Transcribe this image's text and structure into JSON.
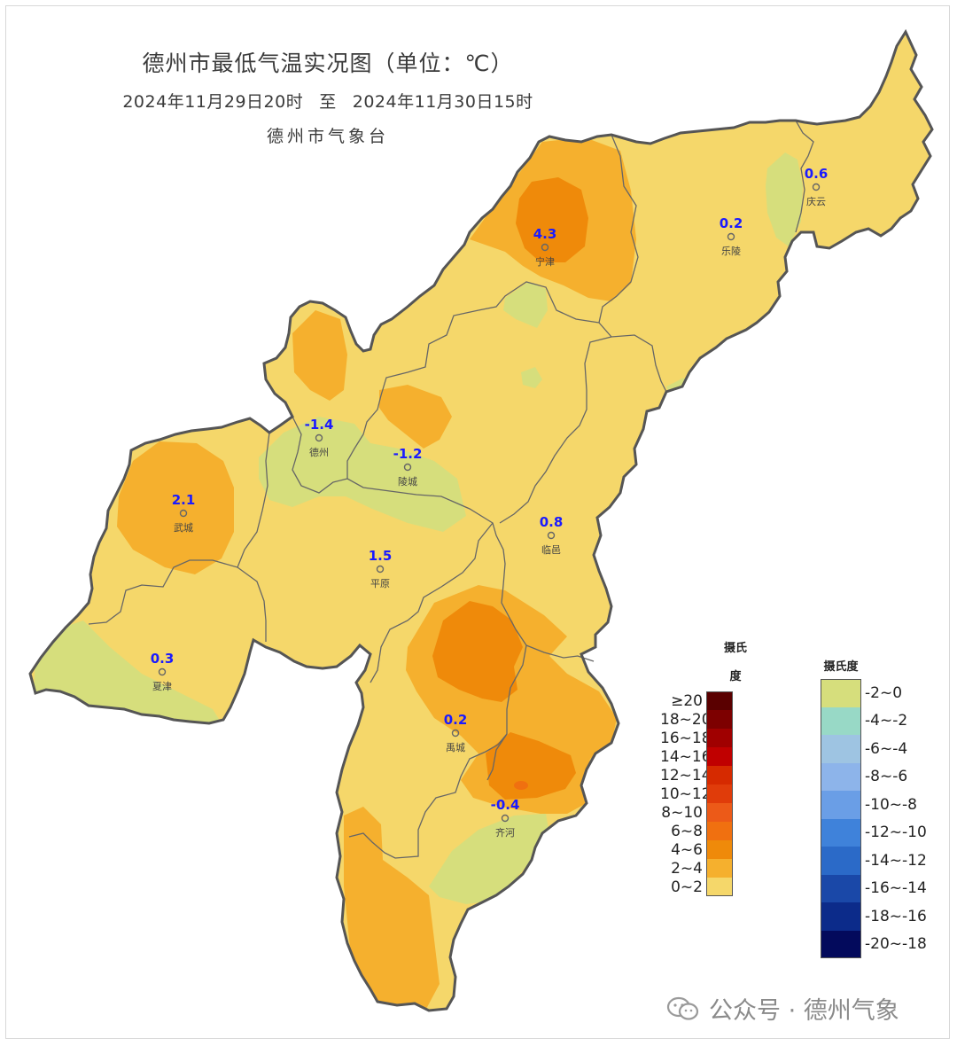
{
  "header": {
    "title": "德州市最低气温实况图（单位：℃）",
    "period_start": "2024年11月29日20时",
    "period_sep": "至",
    "period_end": "2024年11月30日15时",
    "issuer": "德州市气象台"
  },
  "stations": [
    {
      "name": "宁津",
      "value": "4.3"
    },
    {
      "name": "乐陵",
      "value": "0.2"
    },
    {
      "name": "庆云",
      "value": "0.6"
    },
    {
      "name": "德州",
      "value": "-1.4"
    },
    {
      "name": "陵城",
      "value": "-1.2"
    },
    {
      "name": "武城",
      "value": "2.1"
    },
    {
      "name": "平原",
      "value": "1.5"
    },
    {
      "name": "临邑",
      "value": "0.8"
    },
    {
      "name": "夏津",
      "value": "0.3"
    },
    {
      "name": "禹城",
      "value": "0.2"
    },
    {
      "name": "齐河",
      "value": "-0.4"
    }
  ],
  "legend_warm": {
    "title_line1": "摄氏",
    "title_line2": "度",
    "items": [
      {
        "label": "≥20",
        "color": "#5a0000"
      },
      {
        "label": "18~20",
        "color": "#7d0000"
      },
      {
        "label": "16~18",
        "color": "#a00000"
      },
      {
        "label": "14~16",
        "color": "#c00000"
      },
      {
        "label": "12~14",
        "color": "#d62a00"
      },
      {
        "label": "10~12",
        "color": "#e03c0a"
      },
      {
        "label": "8~10",
        "color": "#ec5a18"
      },
      {
        "label": "6~8",
        "color": "#f07010"
      },
      {
        "label": "4~6",
        "color": "#ef8a0a"
      },
      {
        "label": "2~4",
        "color": "#f5b02e"
      },
      {
        "label": "0~2",
        "color": "#f5d76a"
      }
    ]
  },
  "legend_cold": {
    "title": "摄氏度",
    "items": [
      {
        "label": "-2~0",
        "color": "#d6de7c"
      },
      {
        "label": "-4~-2",
        "color": "#98d9c6"
      },
      {
        "label": "-6~-4",
        "color": "#9ec4e2"
      },
      {
        "label": "-8~-6",
        "color": "#8db4ea"
      },
      {
        "label": "-10~-8",
        "color": "#6a9ee6"
      },
      {
        "label": "-12~-10",
        "color": "#3f82da"
      },
      {
        "label": "-14~-12",
        "color": "#2b6ac8"
      },
      {
        "label": "-16~-14",
        "color": "#1a48a8"
      },
      {
        "label": "-18~-16",
        "color": "#0c2b8a"
      },
      {
        "label": "-20~-18",
        "color": "#030a5c"
      }
    ]
  },
  "watermark": {
    "text": "公众号 · 德州气象",
    "icon": "wechat-icon"
  }
}
